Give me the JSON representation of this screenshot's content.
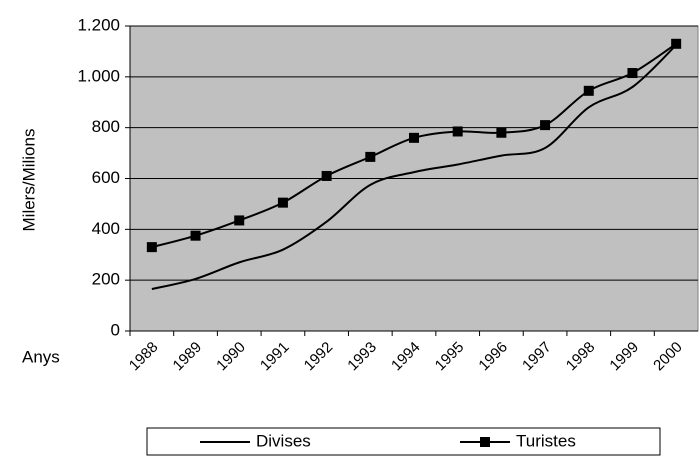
{
  "chart_data": {
    "type": "line",
    "y_label": "Milers/Milions",
    "x_label": "Anys",
    "categories": [
      "1988",
      "1989",
      "1990",
      "1991",
      "1992",
      "1993",
      "1994",
      "1995",
      "1996",
      "1997",
      "1998",
      "1999",
      "2000"
    ],
    "series": [
      {
        "name": "Divises",
        "color": "#000000",
        "marker": "none",
        "values": [
          165,
          205,
          270,
          320,
          430,
          575,
          625,
          655,
          690,
          720,
          880,
          960,
          1125
        ]
      },
      {
        "name": "Turistes",
        "color": "#000000",
        "marker": "square",
        "values": [
          330,
          375,
          435,
          505,
          610,
          685,
          760,
          785,
          780,
          810,
          945,
          1015,
          1130
        ]
      }
    ],
    "ylim": [
      0,
      1200
    ],
    "yticks": [
      0,
      200,
      400,
      600,
      800,
      {
        "value": 1000,
        "label": "1.000"
      },
      {
        "value": 1200,
        "label": "1.200"
      }
    ],
    "grid": true,
    "plot_background": "#c0c0c0",
    "legend": "bottom"
  }
}
